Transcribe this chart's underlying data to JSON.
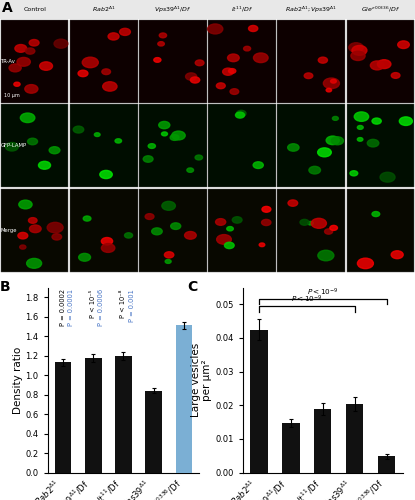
{
  "panel_B": {
    "values": [
      1.13,
      1.18,
      1.2,
      0.84,
      1.51
    ],
    "errors": [
      0.04,
      0.04,
      0.04,
      0.025,
      0.035
    ],
    "bar_colors": [
      "#111111",
      "#111111",
      "#111111",
      "#111111",
      "#7bafd4"
    ],
    "ylabel": "Density ratio",
    "ylim": [
      0.0,
      1.9
    ],
    "yticks": [
      0.0,
      0.2,
      0.4,
      0.6,
      0.8,
      1.0,
      1.2,
      1.4,
      1.6,
      1.8
    ],
    "p_black": [
      "P = 0.0002",
      "P < 10⁻⁵",
      "P < 10⁻⁸"
    ],
    "p_blue": [
      "P = 0.0001",
      "P = 0.0006",
      "P = 0.001"
    ],
    "label": "B"
  },
  "panel_C": {
    "values": [
      0.0425,
      0.0148,
      0.019,
      0.0203,
      0.0048
    ],
    "errors": [
      0.003,
      0.0012,
      0.0018,
      0.002,
      0.0007
    ],
    "bar_colors": [
      "#111111",
      "#111111",
      "#111111",
      "#111111",
      "#111111"
    ],
    "ylabel": "Large vesicles\nper µm²",
    "ylim": [
      0.0,
      0.055
    ],
    "yticks": [
      0.0,
      0.01,
      0.02,
      0.03,
      0.04,
      0.05
    ],
    "label": "C"
  },
  "bg_color": "#ffffff",
  "tick_fs": 6.0,
  "axis_label_fs": 7.5,
  "panel_label_fs": 10,
  "bar_width": 0.55
}
